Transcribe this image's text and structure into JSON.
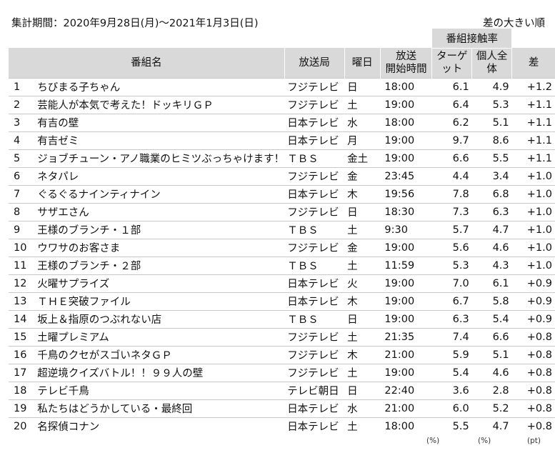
{
  "header": {
    "period_label": "集計期間：2020年9月28日(月)～2021年1月3日(日)",
    "sort_note": "差の大きい順"
  },
  "columns": {
    "group": "番組接触率",
    "title": "番組名",
    "station": "放送局",
    "day": "曜日",
    "time_line1": "放送",
    "time_line2": "開始時間",
    "target": "ターゲット",
    "overall": "個人全体",
    "diff": "差"
  },
  "units": {
    "target": "(%)",
    "overall": "(%)",
    "diff": "(pt)"
  },
  "rows": [
    {
      "rank": "1",
      "title": "ちびまる子ちゃん",
      "station": "フジテレビ",
      "day": "日",
      "time": "18:00",
      "target": "6.1",
      "overall": "4.9",
      "diff": "+1.2"
    },
    {
      "rank": "2",
      "title": "芸能人が本気で考えた！ドッキリＧＰ",
      "station": "フジテレビ",
      "day": "土",
      "time": "19:00",
      "target": "6.4",
      "overall": "5.3",
      "diff": "+1.1"
    },
    {
      "rank": "3",
      "title": "有吉の壁",
      "station": "日本テレビ",
      "day": "水",
      "time": "18:00",
      "target": "6.2",
      "overall": "5.1",
      "diff": "+1.1"
    },
    {
      "rank": "4",
      "title": "有吉ゼミ",
      "station": "日本テレビ",
      "day": "月",
      "time": "19:00",
      "target": "9.7",
      "overall": "8.6",
      "diff": "+1.1"
    },
    {
      "rank": "5",
      "title": "ジョブチューン・アノ職業のヒミツぶっちゃけます！",
      "station": "ＴＢＳ",
      "day": "金土",
      "time": "19:00",
      "target": "6.6",
      "overall": "5.5",
      "diff": "+1.1"
    },
    {
      "rank": "6",
      "title": "ネタパレ",
      "station": "フジテレビ",
      "day": "金",
      "time": "23:45",
      "target": "4.4",
      "overall": "3.4",
      "diff": "+1.0"
    },
    {
      "rank": "7",
      "title": "ぐるぐるナインティナイン",
      "station": "日本テレビ",
      "day": "木",
      "time": "19:56",
      "target": "7.8",
      "overall": "6.8",
      "diff": "+1.0"
    },
    {
      "rank": "8",
      "title": "サザエさん",
      "station": "フジテレビ",
      "day": "日",
      "time": "18:30",
      "target": "7.3",
      "overall": "6.3",
      "diff": "+1.0"
    },
    {
      "rank": "9",
      "title": "王様のブランチ・１部",
      "station": "ＴＢＳ",
      "day": "土",
      "time": "9:30",
      "target": "5.7",
      "overall": "4.7",
      "diff": "+1.0"
    },
    {
      "rank": "10",
      "title": "ウワサのお客さま",
      "station": "フジテレビ",
      "day": "金",
      "time": "19:00",
      "target": "5.6",
      "overall": "4.6",
      "diff": "+1.0"
    },
    {
      "rank": "11",
      "title": "王様のブランチ・２部",
      "station": "ＴＢＳ",
      "day": "土",
      "time": "11:59",
      "target": "5.3",
      "overall": "4.3",
      "diff": "+1.0"
    },
    {
      "rank": "12",
      "title": "火曜サプライズ",
      "station": "日本テレビ",
      "day": "火",
      "time": "19:00",
      "target": "7.0",
      "overall": "6.1",
      "diff": "+0.9"
    },
    {
      "rank": "13",
      "title": "ＴＨＥ突破ファイル",
      "station": "日本テレビ",
      "day": "木",
      "time": "19:00",
      "target": "6.7",
      "overall": "5.8",
      "diff": "+0.9"
    },
    {
      "rank": "14",
      "title": "坂上＆指原のつぶれない店",
      "station": "ＴＢＳ",
      "day": "日",
      "time": "19:00",
      "target": "6.3",
      "overall": "5.4",
      "diff": "+0.9"
    },
    {
      "rank": "15",
      "title": "土曜プレミアム",
      "station": "フジテレビ",
      "day": "土",
      "time": "21:35",
      "target": "7.4",
      "overall": "6.6",
      "diff": "+0.8"
    },
    {
      "rank": "16",
      "title": "千鳥のクセがスゴいネタＧＰ",
      "station": "フジテレビ",
      "day": "木",
      "time": "21:00",
      "target": "5.9",
      "overall": "5.1",
      "diff": "+0.8"
    },
    {
      "rank": "17",
      "title": "超逆境クイズバトル！！９９人の壁",
      "station": "フジテレビ",
      "day": "土",
      "time": "19:00",
      "target": "5.4",
      "overall": "4.6",
      "diff": "+0.8"
    },
    {
      "rank": "18",
      "title": "テレビ千鳥",
      "station": "テレビ朝日",
      "day": "日",
      "time": "22:40",
      "target": "3.6",
      "overall": "2.8",
      "diff": "+0.8"
    },
    {
      "rank": "19",
      "title": "私たちはどうかしている・最終回",
      "station": "日本テレビ",
      "day": "水",
      "time": "21:00",
      "target": "6.0",
      "overall": "5.2",
      "diff": "+0.8"
    },
    {
      "rank": "20",
      "title": "名探偵コナン",
      "station": "日本テレビ",
      "day": "土",
      "time": "18:00",
      "target": "5.5",
      "overall": "4.7",
      "diff": "+0.8"
    }
  ]
}
